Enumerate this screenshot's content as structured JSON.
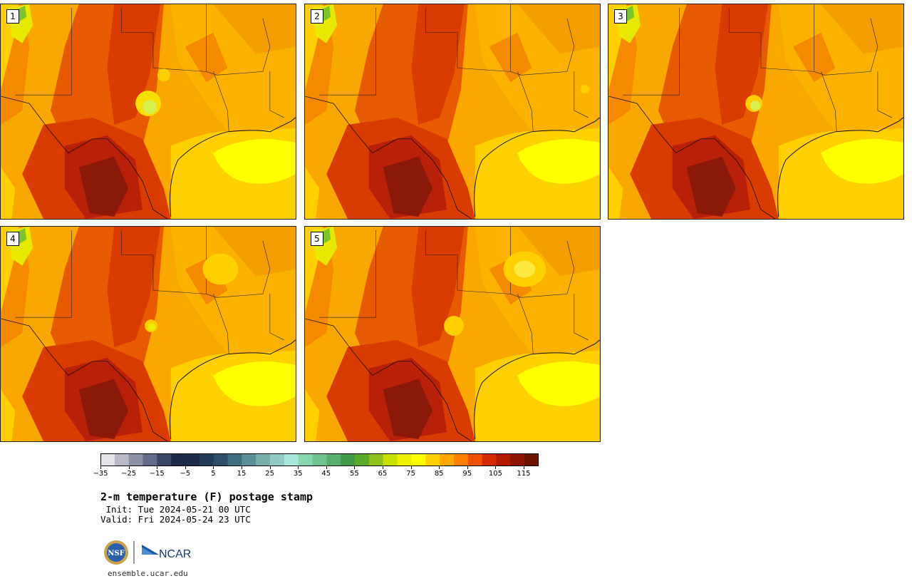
{
  "panels": [
    {
      "label": "1"
    },
    {
      "label": "2"
    },
    {
      "label": "3"
    },
    {
      "label": "4"
    },
    {
      "label": "5"
    }
  ],
  "colorbar": {
    "colors": [
      "#e6e6ea",
      "#b9b9c7",
      "#8e92a6",
      "#62698a",
      "#3a4668",
      "#1c2848",
      "#1b2a4a",
      "#223b5c",
      "#2b4f6a",
      "#3f6f7f",
      "#5b8f97",
      "#77afad",
      "#8fcbc4",
      "#a8e6da",
      "#86d6b0",
      "#6fc48f",
      "#57b06c",
      "#3f9a45",
      "#5aaa2a",
      "#8cc219",
      "#c8e000",
      "#eef200",
      "#ffff00",
      "#ffd000",
      "#ffa800",
      "#ff7f00",
      "#ee4f00",
      "#d32800",
      "#b21a00",
      "#8c1400",
      "#6e1200"
    ],
    "tick_labels": [
      "−35",
      "−25",
      "−15",
      "−5",
      "5",
      "15",
      "25",
      "35",
      "45",
      "55",
      "65",
      "75",
      "85",
      "95",
      "105",
      "115"
    ]
  },
  "title": "2-m temperature (F) postage stamp",
  "init": " Init: Tue 2024-05-21 00 UTC",
  "valid": "Valid: Fri 2024-05-24 23 UTC",
  "footer_url": "ensemble.ucar.edu",
  "logos": {
    "nsf": "NSF",
    "ncar": "NCAR"
  }
}
